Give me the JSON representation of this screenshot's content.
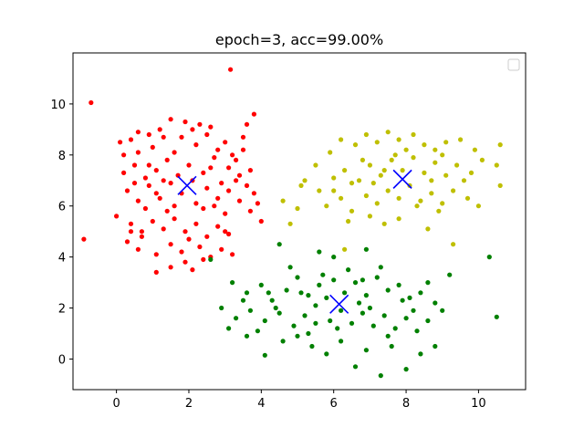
{
  "chart_data": {
    "type": "scatter",
    "title": "epoch=3, acc=99.00%",
    "xlabel": "",
    "ylabel": "",
    "xlim": [
      -1.2,
      11.3
    ],
    "ylim": [
      -1.2,
      12.0
    ],
    "xticks": [
      0,
      2,
      4,
      6,
      8,
      10
    ],
    "yticks": [
      0,
      2,
      4,
      6,
      8,
      10
    ],
    "grid": false,
    "legend": {
      "placement": "top-right",
      "entries": []
    },
    "series": [
      {
        "color": "#ff0000",
        "points": [
          [
            -0.7,
            10.05
          ],
          [
            3.15,
            11.35
          ],
          [
            -0.9,
            4.7
          ],
          [
            0.1,
            8.5
          ],
          [
            0.4,
            8.6
          ],
          [
            0.6,
            8.1
          ],
          [
            0.9,
            8.8
          ],
          [
            1.3,
            8.7
          ],
          [
            1.5,
            9.4
          ],
          [
            1.9,
            9.3
          ],
          [
            2.1,
            9.0
          ],
          [
            2.3,
            9.2
          ],
          [
            2.6,
            9.1
          ],
          [
            3.0,
            8.5
          ],
          [
            3.5,
            8.7
          ],
          [
            3.6,
            9.2
          ],
          [
            3.8,
            9.6
          ],
          [
            3.5,
            8.2
          ],
          [
            0.2,
            7.3
          ],
          [
            0.5,
            7.6
          ],
          [
            0.8,
            7.1
          ],
          [
            1.1,
            7.4
          ],
          [
            1.4,
            7.8
          ],
          [
            1.7,
            7.2
          ],
          [
            2.0,
            7.6
          ],
          [
            2.4,
            7.3
          ],
          [
            2.7,
            7.9
          ],
          [
            3.1,
            7.5
          ],
          [
            3.3,
            7.0
          ],
          [
            3.7,
            7.4
          ],
          [
            0.3,
            6.6
          ],
          [
            0.6,
            6.2
          ],
          [
            0.9,
            6.8
          ],
          [
            1.2,
            6.3
          ],
          [
            1.5,
            6.9
          ],
          [
            1.8,
            6.5
          ],
          [
            2.2,
            6.1
          ],
          [
            2.5,
            6.7
          ],
          [
            2.8,
            6.3
          ],
          [
            3.1,
            6.6
          ],
          [
            3.4,
            6.2
          ],
          [
            3.7,
            5.8
          ],
          [
            3.9,
            6.1
          ],
          [
            0.0,
            5.6
          ],
          [
            0.4,
            5.3
          ],
          [
            0.7,
            5.0
          ],
          [
            1.0,
            5.4
          ],
          [
            1.3,
            5.1
          ],
          [
            1.6,
            5.5
          ],
          [
            1.9,
            5.0
          ],
          [
            2.2,
            5.3
          ],
          [
            2.5,
            4.8
          ],
          [
            2.8,
            5.2
          ],
          [
            3.1,
            4.9
          ],
          [
            0.3,
            4.6
          ],
          [
            0.6,
            4.3
          ],
          [
            1.1,
            4.1
          ],
          [
            1.5,
            4.5
          ],
          [
            1.8,
            4.2
          ],
          [
            2.3,
            4.4
          ],
          [
            2.6,
            4.0
          ],
          [
            2.9,
            4.3
          ],
          [
            3.2,
            4.1
          ],
          [
            1.1,
            3.4
          ],
          [
            1.5,
            3.6
          ],
          [
            2.1,
            3.5
          ],
          [
            2.4,
            3.9
          ],
          [
            4.0,
            5.4
          ],
          [
            0.2,
            8.0
          ],
          [
            1.0,
            8.3
          ],
          [
            1.6,
            8.1
          ],
          [
            2.2,
            8.4
          ],
          [
            2.8,
            8.2
          ],
          [
            3.3,
            7.8
          ],
          [
            0.5,
            6.9
          ],
          [
            1.3,
            7.0
          ],
          [
            2.1,
            7.0
          ],
          [
            2.9,
            6.9
          ],
          [
            3.6,
            6.8
          ],
          [
            0.8,
            5.9
          ],
          [
            1.6,
            6.0
          ],
          [
            2.4,
            5.9
          ],
          [
            3.0,
            5.7
          ],
          [
            1.2,
            9.0
          ],
          [
            2.5,
            8.8
          ],
          [
            0.7,
            4.8
          ],
          [
            1.9,
            3.8
          ],
          [
            3.4,
            7.2
          ],
          [
            1.4,
            5.8
          ],
          [
            2.7,
            6.0
          ],
          [
            0.9,
            7.6
          ],
          [
            1.8,
            8.7
          ],
          [
            3.0,
            5.0
          ],
          [
            0.4,
            5.0
          ],
          [
            3.8,
            6.5
          ],
          [
            2.0,
            4.7
          ],
          [
            1.1,
            6.5
          ],
          [
            2.6,
            7.5
          ],
          [
            3.2,
            8.0
          ],
          [
            0.6,
            8.9
          ]
        ]
      },
      {
        "color": "#bfbf00",
        "points": [
          [
            5.2,
            7.0
          ],
          [
            5.5,
            7.6
          ],
          [
            5.9,
            8.1
          ],
          [
            6.2,
            8.6
          ],
          [
            6.6,
            8.4
          ],
          [
            6.9,
            8.8
          ],
          [
            7.2,
            8.5
          ],
          [
            7.5,
            8.9
          ],
          [
            7.8,
            8.6
          ],
          [
            8.2,
            8.8
          ],
          [
            8.5,
            8.4
          ],
          [
            8.8,
            8.2
          ],
          [
            9.1,
            8.5
          ],
          [
            9.5,
            8.6
          ],
          [
            9.9,
            8.2
          ],
          [
            10.6,
            8.4
          ],
          [
            5.6,
            6.6
          ],
          [
            6.0,
            7.1
          ],
          [
            6.3,
            7.4
          ],
          [
            6.7,
            7.0
          ],
          [
            7.0,
            7.6
          ],
          [
            7.3,
            7.2
          ],
          [
            7.6,
            7.8
          ],
          [
            7.9,
            7.4
          ],
          [
            8.2,
            7.9
          ],
          [
            8.5,
            7.3
          ],
          [
            8.8,
            7.7
          ],
          [
            9.1,
            7.2
          ],
          [
            9.4,
            7.6
          ],
          [
            9.8,
            7.3
          ],
          [
            10.1,
            7.8
          ],
          [
            10.5,
            7.6
          ],
          [
            4.6,
            6.2
          ],
          [
            5.0,
            5.9
          ],
          [
            5.8,
            6.0
          ],
          [
            6.2,
            6.3
          ],
          [
            6.5,
            5.8
          ],
          [
            6.9,
            6.4
          ],
          [
            7.2,
            6.1
          ],
          [
            7.5,
            6.6
          ],
          [
            7.8,
            6.3
          ],
          [
            8.1,
            6.8
          ],
          [
            8.4,
            6.2
          ],
          [
            8.7,
            6.5
          ],
          [
            9.0,
            6.1
          ],
          [
            9.3,
            6.6
          ],
          [
            9.7,
            6.3
          ],
          [
            10.0,
            6.0
          ],
          [
            10.6,
            6.8
          ],
          [
            4.8,
            5.3
          ],
          [
            6.4,
            5.4
          ],
          [
            7.0,
            5.6
          ],
          [
            7.4,
            5.3
          ],
          [
            7.8,
            5.5
          ],
          [
            8.6,
            5.1
          ],
          [
            9.3,
            4.5
          ],
          [
            6.3,
            4.3
          ],
          [
            5.1,
            6.8
          ],
          [
            6.8,
            7.8
          ],
          [
            7.4,
            7.4
          ],
          [
            8.0,
            8.2
          ],
          [
            8.7,
            7.0
          ],
          [
            9.6,
            7.0
          ],
          [
            7.1,
            6.9
          ],
          [
            8.3,
            6.0
          ],
          [
            6.0,
            6.6
          ],
          [
            9.0,
            8.0
          ],
          [
            7.7,
            8.0
          ],
          [
            6.5,
            6.9
          ],
          [
            8.9,
            5.8
          ]
        ]
      },
      {
        "color": "#008000",
        "points": [
          [
            2.6,
            3.9
          ],
          [
            4.5,
            4.5
          ],
          [
            5.6,
            4.2
          ],
          [
            6.9,
            4.3
          ],
          [
            3.2,
            3.0
          ],
          [
            3.6,
            2.6
          ],
          [
            4.0,
            2.9
          ],
          [
            4.3,
            2.3
          ],
          [
            4.7,
            2.7
          ],
          [
            5.0,
            3.2
          ],
          [
            5.3,
            2.5
          ],
          [
            5.6,
            2.9
          ],
          [
            6.0,
            3.1
          ],
          [
            6.3,
            2.6
          ],
          [
            6.6,
            3.0
          ],
          [
            6.9,
            2.5
          ],
          [
            7.2,
            3.2
          ],
          [
            7.5,
            2.7
          ],
          [
            7.8,
            2.9
          ],
          [
            8.1,
            2.4
          ],
          [
            8.4,
            2.6
          ],
          [
            8.8,
            2.2
          ],
          [
            9.2,
            3.3
          ],
          [
            10.3,
            4.0
          ],
          [
            2.9,
            2.0
          ],
          [
            3.3,
            1.6
          ],
          [
            3.7,
            1.9
          ],
          [
            4.1,
            1.5
          ],
          [
            4.5,
            1.8
          ],
          [
            4.9,
            1.3
          ],
          [
            5.2,
            1.7
          ],
          [
            5.5,
            2.1
          ],
          [
            5.9,
            1.5
          ],
          [
            6.2,
            1.9
          ],
          [
            6.5,
            1.4
          ],
          [
            6.8,
            1.8
          ],
          [
            7.1,
            1.3
          ],
          [
            7.4,
            1.7
          ],
          [
            7.7,
            1.2
          ],
          [
            8.0,
            1.6
          ],
          [
            8.3,
            1.1
          ],
          [
            8.6,
            1.5
          ],
          [
            9.0,
            1.9
          ],
          [
            10.5,
            1.65
          ],
          [
            3.1,
            1.2
          ],
          [
            3.6,
            0.9
          ],
          [
            4.1,
            0.15
          ],
          [
            4.6,
            0.7
          ],
          [
            5.0,
            0.9
          ],
          [
            5.4,
            0.5
          ],
          [
            5.8,
            0.2
          ],
          [
            6.2,
            0.7
          ],
          [
            6.6,
            -0.3
          ],
          [
            6.9,
            0.35
          ],
          [
            7.3,
            -0.65
          ],
          [
            7.6,
            0.5
          ],
          [
            8.0,
            -0.4
          ],
          [
            8.4,
            0.2
          ],
          [
            8.8,
            0.5
          ],
          [
            4.4,
            2.0
          ],
          [
            5.8,
            2.4
          ],
          [
            6.7,
            2.2
          ],
          [
            7.0,
            2.0
          ],
          [
            5.1,
            2.6
          ],
          [
            6.4,
            3.5
          ],
          [
            7.3,
            3.6
          ],
          [
            5.7,
            3.3
          ],
          [
            4.8,
            3.6
          ],
          [
            6.0,
            4.0
          ],
          [
            8.6,
            3.0
          ],
          [
            3.9,
            1.1
          ],
          [
            7.9,
            2.3
          ],
          [
            5.3,
            1.0
          ],
          [
            6.1,
            1.2
          ],
          [
            7.5,
            0.9
          ],
          [
            4.2,
            2.6
          ],
          [
            6.8,
            3.1
          ],
          [
            5.5,
            1.4
          ],
          [
            8.2,
            1.9
          ],
          [
            3.5,
            2.3
          ]
        ]
      }
    ],
    "centroids": [
      {
        "x": 1.95,
        "y": 6.8,
        "color": "#0000ff"
      },
      {
        "x": 7.9,
        "y": 7.05,
        "color": "#0000ff"
      },
      {
        "x": 6.15,
        "y": 2.15,
        "color": "#0000ff"
      }
    ]
  }
}
